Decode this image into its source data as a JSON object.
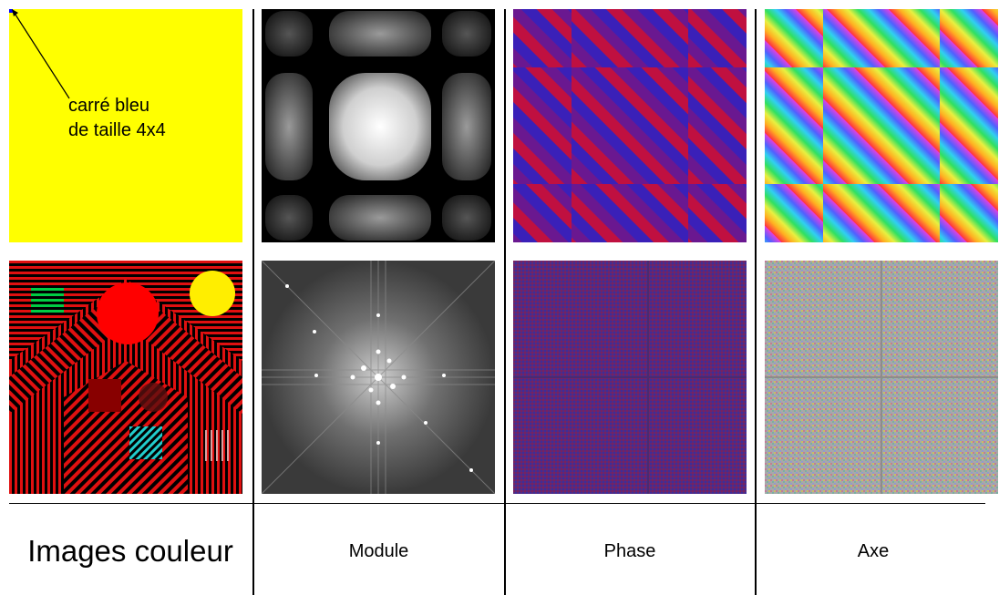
{
  "annotation": {
    "line1": "carré bleu",
    "line2": "de taille 4x4"
  },
  "captions": {
    "images": "Images couleur",
    "module": "Module",
    "phase": "Phase",
    "axe": "Axe"
  },
  "colors": {
    "yellow": "#ffff00",
    "red": "#ff0000",
    "black": "#000000",
    "green": "#00cc44",
    "cyan": "#22cccc",
    "darkred": "#880000",
    "blue_square": "#0000ff"
  }
}
